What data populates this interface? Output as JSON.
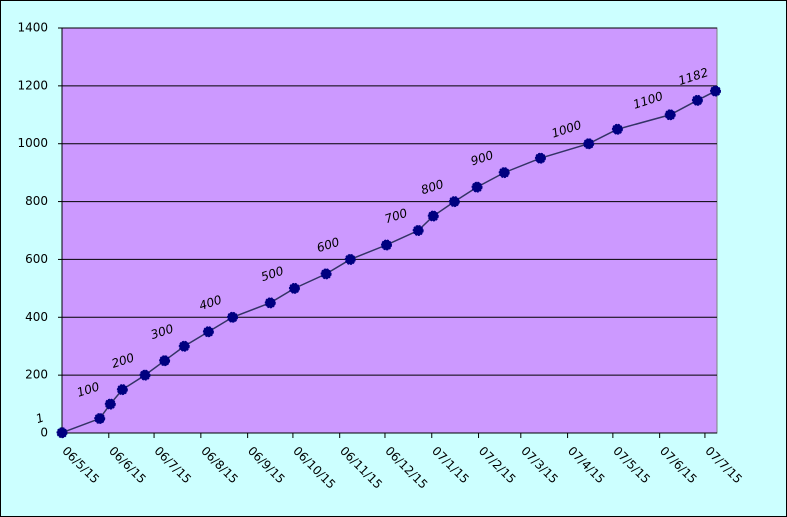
{
  "chart_data": {
    "type": "line",
    "x": [
      "06/5/15",
      "06/6/9",
      "06/6/16",
      "06/6/24",
      "06/7/9",
      "06/7/22",
      "06/8/4",
      "06/8/20",
      "06/9/5",
      "06/9/30",
      "06/10/16",
      "06/11/6",
      "06/11/22",
      "06/12/16",
      "07/1/6",
      "07/1/16",
      "07/1/30",
      "07/2/14",
      "07/3/4",
      "07/3/28",
      "07/4/29",
      "07/5/18",
      "07/6/22",
      "07/7/10",
      "07/7/22"
    ],
    "series": [
      {
        "color": "#333366",
        "marker_color": "#000080",
        "values": [
          1,
          50,
          100,
          150,
          200,
          250,
          300,
          350,
          400,
          450,
          500,
          550,
          600,
          650,
          700,
          750,
          800,
          850,
          900,
          950,
          1000,
          1050,
          1100,
          1150,
          1182
        ],
        "value_labels": [
          "1",
          null,
          "100",
          null,
          "200",
          null,
          "300",
          null,
          "400",
          null,
          "500",
          null,
          "600",
          null,
          "700",
          null,
          "800",
          null,
          "900",
          null,
          "1000",
          null,
          "1100",
          null,
          "1182"
        ]
      }
    ],
    "xlim": [
      "06/5/15",
      "07/7/23"
    ],
    "xticks": [
      "06/5/15",
      "06/6/15",
      "06/7/15",
      "06/8/15",
      "06/9/15",
      "06/10/15",
      "06/11/15",
      "06/12/15",
      "07/1/15",
      "07/2/15",
      "07/3/15",
      "07/4/15",
      "07/5/15",
      "07/6/15",
      "07/7/15"
    ],
    "ylim": [
      0,
      1400
    ],
    "yticks": [
      0,
      200,
      400,
      600,
      800,
      1000,
      1200,
      1400
    ],
    "grid": true,
    "plot_color": "#cc99ff",
    "background_color": "#ccffff"
  }
}
